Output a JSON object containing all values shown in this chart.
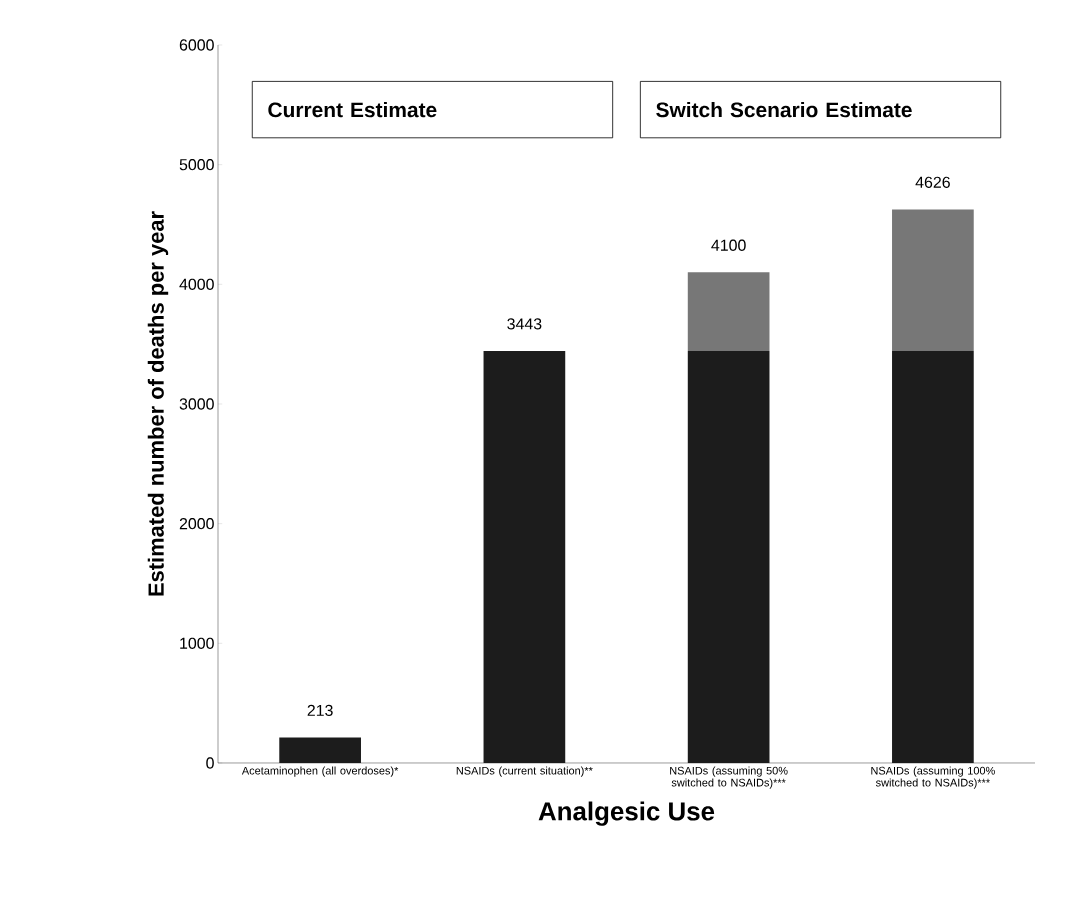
{
  "chart_data": {
    "type": "bar",
    "stacked": true,
    "xlabel": "Analgesic Use",
    "ylabel": "Estimated number of deaths per year",
    "categories": [
      "Acetaminophen (all overdoses)*",
      "NSAIDs (current situation)**",
      "NSAIDs (assuming 50% switched to NSAIDs)***",
      "NSAIDs (assuming 100% switched to NSAIDs)***"
    ],
    "series": [
      {
        "color": "#1c1c1c",
        "values": [
          213,
          3443,
          3443,
          3443
        ]
      },
      {
        "color": "#777777",
        "values": [
          null,
          null,
          657,
          1183
        ]
      }
    ],
    "totals": [
      "213",
      "3443",
      "4100",
      "4626"
    ],
    "annotations": [
      "Current Estimate",
      "Switch Scenario Estimate"
    ],
    "ylim": [
      0,
      6000
    ],
    "yticks": [
      0,
      1000,
      2000,
      3000,
      4000,
      5000,
      6000
    ],
    "grid": false
  }
}
